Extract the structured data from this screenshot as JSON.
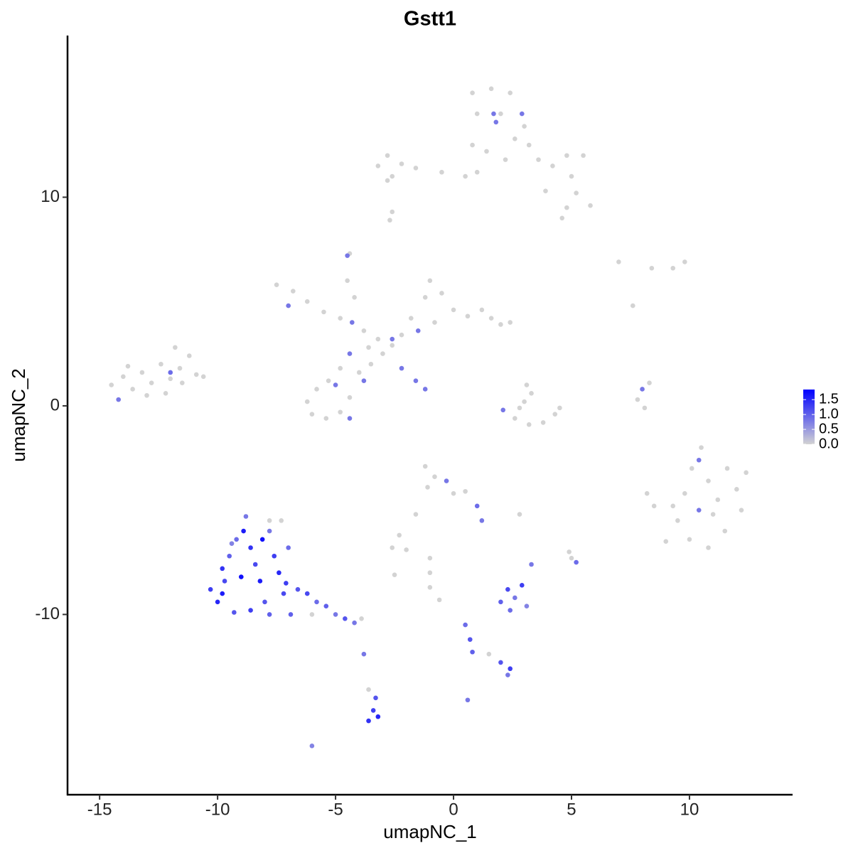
{
  "chart_data": {
    "type": "scatter",
    "title": "Gstt1",
    "x_label": "umapNC_1",
    "y_label": "umapNC_2",
    "xlim": [
      -16.36,
      14.37
    ],
    "ylim": [
      -18.64,
      17.75
    ],
    "xticks": [
      -15,
      -10,
      -5,
      0,
      5,
      10
    ],
    "yticks": [
      -10,
      0,
      10
    ],
    "colorbar": {
      "lim": [
        0,
        1.84
      ],
      "ticks": [
        {
          "value": 0,
          "label": "0.0"
        },
        {
          "value": 0.5,
          "label": "0.5"
        },
        {
          "value": 1,
          "label": "1.0"
        },
        {
          "value": 1.5,
          "label": "1.5"
        }
      ],
      "low_color": "#d3d3d3",
      "high_color": "#0000ff"
    },
    "x": [
      -14.5,
      -14.0,
      -13.6,
      -13.2,
      -12.8,
      -12.4,
      -12.0,
      -11.6,
      -11.2,
      -10.9,
      -13.0,
      -12.2,
      -14.2,
      -12.0,
      -11.5,
      -13.8,
      -11.8,
      -10.6,
      -7.5,
      -6.8,
      -7.0,
      -6.2,
      -5.5,
      -4.8,
      -4.3,
      -3.8,
      -3.2,
      -2.6,
      -2.2,
      -1.8,
      -1.2,
      -1.0,
      -0.5,
      0,
      0.6,
      1.2,
      1.6,
      2.0,
      2.4,
      -1.5,
      -0.8,
      -3.0,
      -3.5,
      -4.0,
      -4.4,
      -4.8,
      -5.3,
      -5.8,
      -6.2,
      -6.0,
      -5.4,
      -4.8,
      -4.4,
      -4.4,
      -3.8,
      -5.0,
      -2.2,
      -1.6,
      -1.2,
      -4.5,
      -4.4,
      -4.5,
      -4.2,
      -2.6,
      -3.6,
      -3.2,
      -2.8,
      -2.2,
      -2.6,
      -1.6,
      -0.5,
      0.5,
      1.0,
      0.8,
      1.0,
      0.8,
      1.6,
      2.0,
      1.8,
      2.4,
      2.9,
      1.7,
      2.6,
      3.2,
      3.6,
      4.2,
      4.8,
      5.5,
      5.0,
      5.8,
      4.8,
      5.2,
      3.9,
      4.6,
      2.2,
      1.4,
      -2.6,
      -2.7,
      -2.8,
      3.0,
      2.1,
      2.6,
      3.2,
      3.8,
      4.3,
      4.5,
      3.0,
      3.1,
      3.3,
      2.8,
      7,
      8.4,
      9.3,
      9.8,
      7.6,
      7.8,
      8.0,
      8.1,
      8.3,
      8.2,
      8.5,
      9.0,
      9.5,
      9.8,
      10.1,
      10.4,
      10.8,
      11.2,
      11.6,
      12.0,
      12.4,
      12.2,
      11.5,
      10.8,
      10.0,
      10.4,
      9.3,
      11.0,
      10.5,
      -1.2,
      -0.8,
      -0.3,
      -1.1,
      0.0,
      0.5,
      1.0,
      1.2,
      -1.6,
      -2.3,
      -2.6,
      -2.0,
      -1.0,
      -1.0,
      -0.6,
      2.8,
      -10.3,
      -10.0,
      -9.7,
      -9.5,
      -9.2,
      -8.8,
      -8.6,
      -8.4,
      -8.2,
      -8.0,
      -7.8,
      -7.6,
      -7.4,
      -7.2,
      -7.8,
      -8.6,
      -9.3,
      -9.8,
      -9.0,
      -8.9,
      -7.0,
      -7.1,
      -7.3,
      -6.6,
      -6.2,
      -5.8,
      -5.4,
      -5.0,
      -4.6,
      -4.2,
      -3.9,
      -6.0,
      -7.8,
      -9.8,
      -9.4,
      -8.1,
      -6.9,
      2.0,
      2.3,
      2.6,
      2.9,
      3.1,
      2.4,
      3.3,
      5.0,
      5.2,
      4.9,
      0.5,
      0.7,
      0.8,
      1.5,
      2.0,
      2.4,
      2.3,
      0.6,
      -3.8,
      -3.6,
      -3.4,
      -3.6,
      -3.2,
      -3.3,
      -6.0,
      -2.5,
      -1.0
    ],
    "values": [
      1.0,
      1.4,
      0.8,
      1.6,
      1.1,
      2.0,
      1.3,
      1.8,
      2.4,
      1.5,
      0.5,
      0.6,
      0.3,
      1.6,
      1.1,
      1.9,
      2.8,
      1.4,
      5.8,
      5.5,
      4.8,
      5.0,
      4.5,
      4.2,
      4.0,
      3.6,
      3.2,
      2.9,
      3.4,
      4.2,
      5.2,
      6.0,
      5.4,
      4.6,
      4.3,
      4.6,
      4.2,
      3.9,
      4.0,
      3.6,
      4.0,
      2.5,
      2.0,
      1.6,
      2.5,
      1.8,
      1.2,
      0.8,
      0.2,
      -0.4,
      -0.6,
      -0.3,
      0.4,
      -0.6,
      1.2,
      1.0,
      1.8,
      1.2,
      0.8,
      6.0,
      7.3,
      7.2,
      5.2,
      3.2,
      2.8,
      11.5,
      12.0,
      11.6,
      11.0,
      11.4,
      11.2,
      11.0,
      11.2,
      12.5,
      14.0,
      15.0,
      15.2,
      14.0,
      13.6,
      15.0,
      14.0,
      14.0,
      12.8,
      12.5,
      11.8,
      11.5,
      12.0,
      12.0,
      11.0,
      9.6,
      9.5,
      10.2,
      10.3,
      9.0,
      11.8,
      12.2,
      9.3,
      8.9,
      10.8,
      13.4,
      -0.2,
      -0.6,
      -0.9,
      -0.8,
      -0.4,
      -0.1,
      0.2,
      1.0,
      0.6,
      -0.1,
      6.9,
      6.6,
      6.6,
      6.9,
      4.8,
      0.3,
      0.8,
      -0.1,
      1.1,
      -4.2,
      -4.8,
      -6.5,
      -5.5,
      -4.2,
      -3.0,
      -2.6,
      -3.6,
      -4.5,
      -3.0,
      -4.0,
      -3.2,
      -5.0,
      -6.0,
      -6.8,
      -6.4,
      -5.0,
      -4.8,
      -5.2,
      -2.0,
      -2.9,
      -3.4,
      -3.6,
      -3.9,
      -4.2,
      -4.1,
      -4.8,
      -5.5,
      -5.2,
      -6.2,
      -6.8,
      -6.9,
      -7.3,
      -8.0,
      -9.3,
      -5.2,
      -8.8,
      -9.4,
      -8.4,
      -7.2,
      -6.4,
      -5.3,
      -6.8,
      -7.6,
      -8.4,
      -9.4,
      -6.0,
      -7.2,
      -8.0,
      -9.0,
      -10.0,
      -9.8,
      -9.9,
      -7.8,
      -8.2,
      -6.0,
      -6.8,
      -8.5,
      -5.5,
      -8.8,
      -9.0,
      -9.4,
      -9.6,
      -10.0,
      -10.2,
      -10.4,
      -10.2,
      -10.0,
      -5.5,
      -9.0,
      -6.6,
      -6.4,
      -10.0,
      -9.4,
      -8.8,
      -9.2,
      -8.6,
      -9.6,
      -9.8,
      -7.6,
      -7.3,
      -7.5,
      -7.0,
      -10.5,
      -11.2,
      -11.8,
      -11.9,
      -12.3,
      -12.6,
      -12.9,
      -14.1,
      -11.9,
      -13.6,
      -14.6,
      -15.1,
      -14.9,
      -14.0,
      -16.3,
      -8.1,
      -8.7
    ],
    "expression": [
      0,
      0,
      0,
      0,
      0,
      0,
      0,
      0,
      0,
      0,
      0,
      0,
      0.8,
      0.9,
      0,
      0,
      0,
      0,
      0,
      0,
      0.8,
      0,
      0,
      0,
      0.8,
      0,
      0,
      0,
      0,
      0,
      0,
      0,
      0,
      0,
      0,
      0,
      0,
      0,
      0,
      0.8,
      0,
      0,
      0,
      0,
      0.8,
      0,
      0,
      0,
      0,
      0,
      0,
      0,
      0,
      0.8,
      0.8,
      0.8,
      0.8,
      0.8,
      0.8,
      0,
      0,
      0.8,
      0,
      0.8,
      0,
      0,
      0,
      0,
      0,
      0,
      0,
      0,
      0,
      0,
      0,
      0,
      0,
      0,
      0.8,
      0,
      0.8,
      0.8,
      0,
      0,
      0,
      0,
      0,
      0,
      0,
      0,
      0,
      0,
      0,
      0,
      0,
      0,
      0,
      0,
      0,
      0,
      0.8,
      0,
      0,
      0,
      0,
      0,
      0,
      0,
      0,
      0,
      0,
      0,
      0,
      0,
      0,
      0,
      0.8,
      0,
      0,
      0,
      0,
      0,
      0,
      0,
      0,
      0.8,
      0,
      0,
      0,
      0,
      0,
      0,
      0,
      0,
      0,
      0.8,
      0,
      0,
      0,
      0,
      0,
      0.8,
      0,
      0,
      0,
      0.9,
      0.8,
      0,
      0,
      0,
      0,
      0,
      0,
      0,
      0,
      1.3,
      1.5,
      1.2,
      1.0,
      0.9,
      0.8,
      1.4,
      1.2,
      1.6,
      1.1,
      0.8,
      1.3,
      1.5,
      1.2,
      1.0,
      1.3,
      1.1,
      1.4,
      1.7,
      1.6,
      0.9,
      1.3,
      0,
      1.1,
      1.2,
      0.9,
      1.0,
      0.8,
      1.1,
      0.8,
      0,
      0,
      0,
      1.6,
      0.7,
      1.7,
      1.0,
      1.0,
      1.2,
      0.8,
      1.3,
      0.7,
      0.9,
      0.8,
      0,
      0.9,
      0,
      0.9,
      1.1,
      1.0,
      0,
      1.1,
      1.3,
      0.8,
      0.8,
      0.8,
      0,
      1.3,
      1.4,
      1.5,
      1.1,
      0.7,
      0,
      0
    ]
  }
}
